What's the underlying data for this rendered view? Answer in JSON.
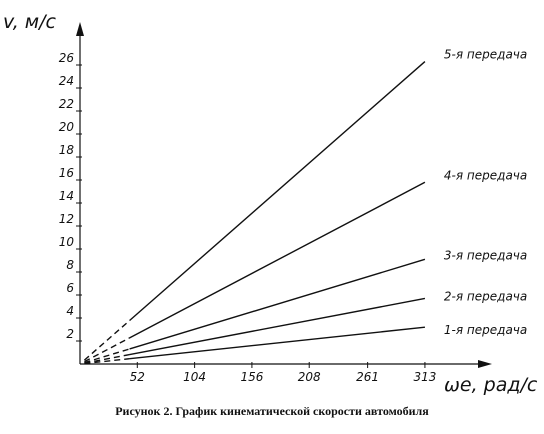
{
  "chart_data": {
    "type": "line",
    "ylabel": "v, м/с",
    "xlabel": "ωе, рад/с",
    "caption": "Рисунок 2. График кинематической скорости автомобиля",
    "x_ticks": [
      "52",
      "104",
      "156",
      "208",
      "261",
      "313"
    ],
    "y_ticks": [
      "2",
      "4",
      "6",
      "8",
      "10",
      "12",
      "14",
      "16",
      "18",
      "20",
      "22",
      "24",
      "26"
    ],
    "xlim": [
      0,
      360
    ],
    "ylim": [
      0,
      30
    ],
    "series": [
      {
        "name": "1-я передача",
        "x": [
          0,
          313
        ],
        "y": [
          0,
          3.2
        ]
      },
      {
        "name": "2-я передача",
        "x": [
          0,
          313
        ],
        "y": [
          0,
          5.7
        ]
      },
      {
        "name": "3-я передача",
        "x": [
          0,
          313
        ],
        "y": [
          0,
          9.1
        ]
      },
      {
        "name": "4-я передача",
        "x": [
          0,
          313
        ],
        "y": [
          0,
          15.8
        ]
      },
      {
        "name": "5-я передача",
        "x": [
          0,
          313
        ],
        "y": [
          0,
          26.3
        ]
      }
    ],
    "solid_from_x": 45,
    "grid": false
  }
}
